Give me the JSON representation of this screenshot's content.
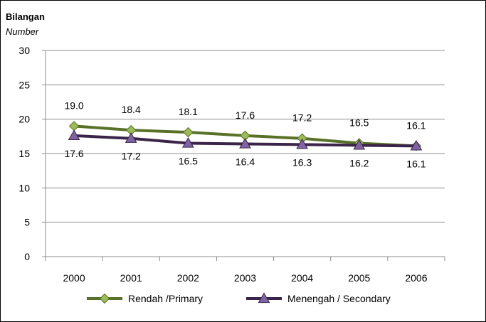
{
  "chart_data": {
    "type": "line",
    "ylabel": "Bilangan",
    "ylabel_sub": "Number",
    "ylim": [
      0,
      30
    ],
    "yticks": [
      0,
      5,
      10,
      15,
      20,
      25,
      30
    ],
    "categories": [
      "2000",
      "2001",
      "2002",
      "2003",
      "2004",
      "2005",
      "2006"
    ],
    "grid": true,
    "legend_position": "bottom",
    "series": [
      {
        "name": "Rendah /Primary",
        "values": [
          19.0,
          18.4,
          18.1,
          17.6,
          17.2,
          16.5,
          16.1
        ],
        "labels": [
          "19.0",
          "18.4",
          "18.1",
          "17.6",
          "17.2",
          "16.5",
          "16.1"
        ],
        "color": "#5a7129",
        "marker": "diamond",
        "marker_color": "#9bbb59",
        "label_side": "above"
      },
      {
        "name": "Menengah / Secondary",
        "values": [
          17.6,
          17.2,
          16.5,
          16.4,
          16.3,
          16.2,
          16.1
        ],
        "labels": [
          "17.6",
          "17.2",
          "16.5",
          "16.4",
          "16.3",
          "16.2",
          "16.1"
        ],
        "color": "#3b2449",
        "marker": "triangle",
        "marker_color": "#8064a2",
        "label_side": "below"
      }
    ]
  }
}
